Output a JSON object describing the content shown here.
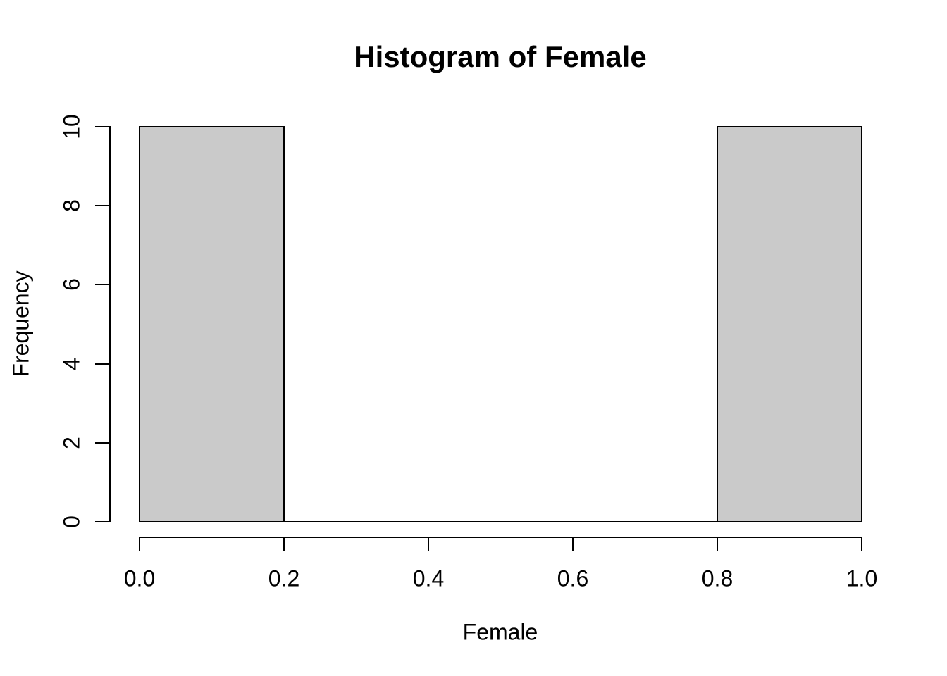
{
  "chart_data": {
    "type": "bar",
    "subtype": "histogram",
    "title": "Histogram of Female",
    "xlabel": "Female",
    "ylabel": "Frequency",
    "breaks": [
      0.0,
      0.2,
      0.4,
      0.6,
      0.8,
      1.0
    ],
    "counts": [
      10,
      0,
      0,
      0,
      10
    ],
    "x_tick_values": [
      0.0,
      0.2,
      0.4,
      0.6,
      0.8,
      1.0
    ],
    "x_tick_labels": [
      "0.0",
      "0.2",
      "0.4",
      "0.6",
      "0.8",
      "1.0"
    ],
    "y_tick_values": [
      0,
      2,
      4,
      6,
      8,
      10
    ],
    "y_tick_labels": [
      "0",
      "2",
      "4",
      "6",
      "8",
      "10"
    ],
    "xlim": [
      0.0,
      1.0
    ],
    "ylim": [
      0,
      10
    ],
    "grid": false,
    "legend": false,
    "colors": {
      "bar_fill": "#cacaca",
      "bar_border": "#000000",
      "axis": "#000000",
      "text": "#000000",
      "background": "#ffffff"
    }
  }
}
